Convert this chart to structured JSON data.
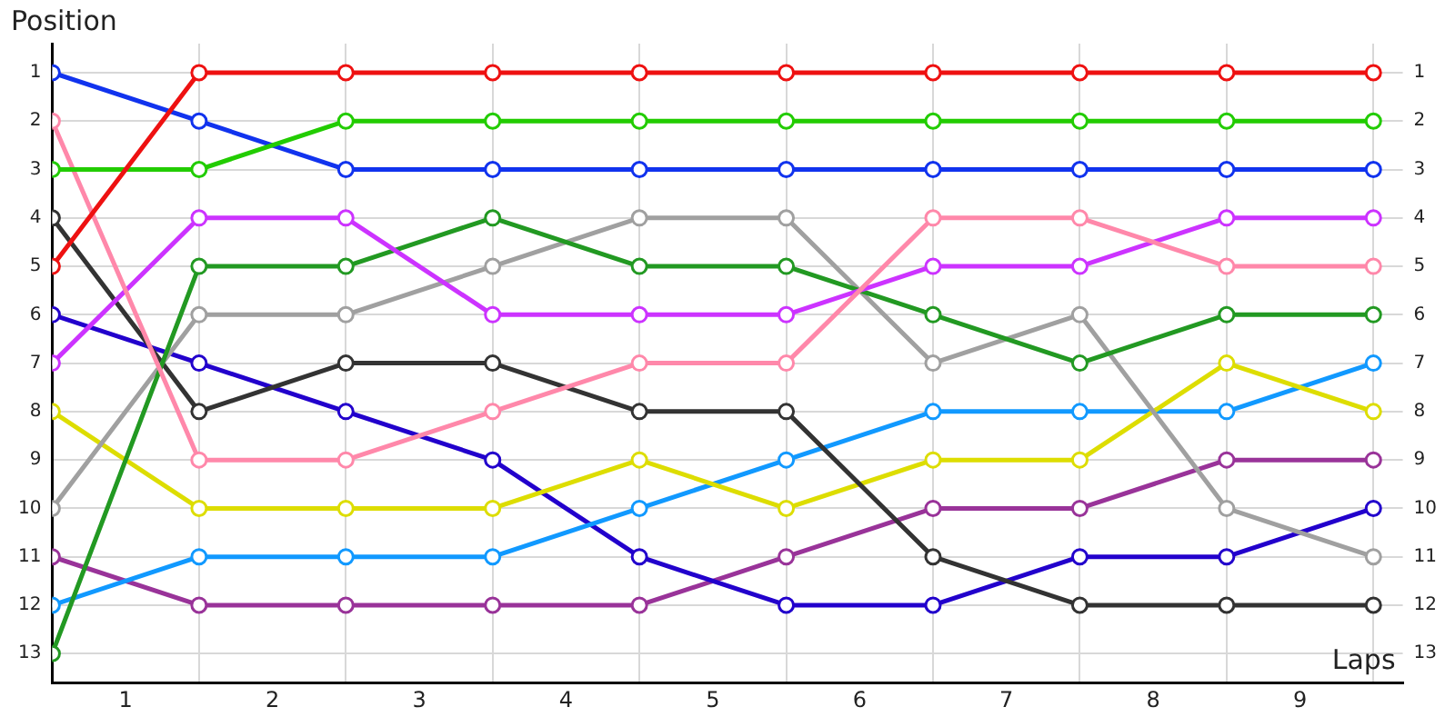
{
  "chart_data": {
    "type": "line",
    "xlabel": "Laps",
    "ylabel": "Position",
    "x": [
      0,
      1,
      2,
      3,
      4,
      5,
      6,
      7,
      8,
      9
    ],
    "xlim": [
      0,
      9.2
    ],
    "xticks": [
      {
        "value": 0,
        "label": null
      },
      {
        "value": 0.5,
        "label": "1"
      },
      {
        "value": 1,
        "label": null
      },
      {
        "value": 1.5,
        "label": "2"
      },
      {
        "value": 2,
        "label": null
      },
      {
        "value": 2.5,
        "label": "3"
      },
      {
        "value": 3,
        "label": null
      },
      {
        "value": 3.5,
        "label": "4"
      },
      {
        "value": 4,
        "label": null
      },
      {
        "value": 4.5,
        "label": "5"
      },
      {
        "value": 5,
        "label": null
      },
      {
        "value": 5.5,
        "label": "6"
      },
      {
        "value": 6,
        "label": null
      },
      {
        "value": 6.5,
        "label": "7"
      },
      {
        "value": 7,
        "label": null
      },
      {
        "value": 7.5,
        "label": "8"
      },
      {
        "value": 8,
        "label": null
      },
      {
        "value": 8.5,
        "label": "9"
      },
      {
        "value": 9,
        "label": null
      }
    ],
    "ylim": [
      13.6,
      0.4
    ],
    "yticks": [
      1,
      2,
      3,
      4,
      5,
      6,
      7,
      8,
      9,
      10,
      11,
      12,
      13
    ],
    "y2lim": [
      13.6,
      0.4
    ],
    "y2ticks": [
      1,
      2,
      3,
      4,
      5,
      6,
      7,
      8,
      9,
      10,
      11,
      12,
      13
    ],
    "grid": true,
    "legend": false,
    "marker": "circle",
    "line_style": "solid",
    "series": [
      {
        "color": "#ee1111",
        "values": [
          5,
          1,
          1,
          1,
          1,
          1,
          1,
          1,
          1,
          1
        ]
      },
      {
        "color": "#22cc00",
        "values": [
          3,
          3,
          2,
          2,
          2,
          2,
          2,
          2,
          2,
          2
        ]
      },
      {
        "color": "#1133ee",
        "values": [
          1,
          2,
          3,
          3,
          3,
          3,
          3,
          3,
          3,
          3
        ]
      },
      {
        "color": "#ff88aa",
        "values": [
          2,
          9,
          9,
          8,
          7,
          7,
          4,
          4,
          5,
          5
        ]
      },
      {
        "color": "#cc33ff",
        "values": [
          7,
          4,
          4,
          6,
          6,
          6,
          5,
          5,
          4,
          4
        ]
      },
      {
        "color": "#229922",
        "values": [
          13,
          5,
          5,
          4,
          5,
          5,
          6,
          7,
          6,
          6
        ]
      },
      {
        "color": "#a0a0a0",
        "values": [
          10,
          6,
          6,
          5,
          4,
          4,
          7,
          6,
          10,
          11
        ]
      },
      {
        "color": "#333333",
        "values": [
          4,
          8,
          7,
          7,
          8,
          8,
          11,
          12,
          12,
          12
        ]
      },
      {
        "color": "#dddd00",
        "values": [
          8,
          10,
          10,
          10,
          9,
          10,
          9,
          9,
          7,
          8
        ]
      },
      {
        "color": "#1199ff",
        "values": [
          12,
          11,
          11,
          11,
          10,
          9,
          8,
          8,
          8,
          7
        ]
      },
      {
        "color": "#2200cc",
        "values": [
          6,
          7,
          8,
          9,
          11,
          12,
          12,
          11,
          11,
          10
        ]
      },
      {
        "color": "#993399",
        "values": [
          11,
          12,
          12,
          12,
          12,
          11,
          10,
          10,
          9,
          9
        ]
      }
    ]
  }
}
